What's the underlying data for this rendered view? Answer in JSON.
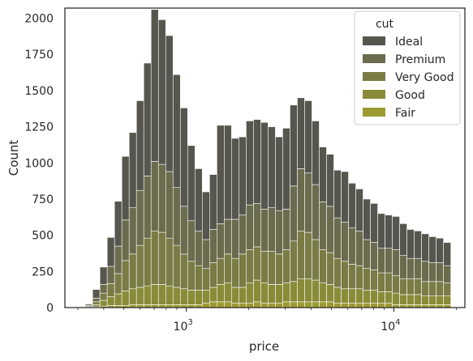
{
  "chart_data": {
    "type": "bar",
    "stacked": true,
    "xscale": "log",
    "xlabel": "price",
    "ylabel": "Count",
    "xlim": [
      260,
      22000
    ],
    "ylim": [
      0,
      2070
    ],
    "y_ticks": [
      0,
      250,
      500,
      750,
      1000,
      1250,
      1500,
      1750,
      2000
    ],
    "x_ticks": [
      {
        "value": 1000,
        "base": "10",
        "exp": "3"
      },
      {
        "value": 10000,
        "base": "10",
        "exp": "4"
      }
    ],
    "bin_range": [
      326,
      18823
    ],
    "bin_count": 50,
    "grid": false,
    "legend": {
      "title": "cut",
      "position": "top-right"
    },
    "series": [
      {
        "name": "Ideal",
        "color": "#56564f",
        "values": [
          10,
          60,
          120,
          200,
          310,
          440,
          520,
          620,
          780,
          1050,
          1000,
          940,
          780,
          680,
          520,
          430,
          330,
          380,
          680,
          650,
          560,
          540,
          580,
          580,
          600,
          560,
          510,
          560,
          560,
          490,
          500,
          440,
          380,
          360,
          330,
          350,
          310,
          290,
          280,
          270,
          240,
          230,
          230,
          220,
          200,
          190,
          190,
          180,
          170,
          160
        ]
      },
      {
        "name": "Premium",
        "color": "#6b6b4e",
        "values": [
          5,
          25,
          60,
          120,
          190,
          280,
          320,
          380,
          430,
          480,
          470,
          460,
          400,
          330,
          280,
          240,
          200,
          230,
          240,
          240,
          270,
          270,
          310,
          300,
          290,
          300,
          300,
          280,
          380,
          430,
          410,
          380,
          330,
          320,
          280,
          270,
          250,
          240,
          200,
          190,
          170,
          170,
          180,
          160,
          140,
          140,
          140,
          130,
          130,
          120
        ]
      },
      {
        "name": "Very Good",
        "color": "#7a7b45",
        "values": [
          5,
          20,
          50,
          90,
          140,
          210,
          240,
          290,
          330,
          370,
          360,
          330,
          290,
          240,
          200,
          170,
          150,
          170,
          180,
          200,
          200,
          230,
          230,
          230,
          220,
          230,
          210,
          230,
          280,
          330,
          320,
          280,
          230,
          220,
          200,
          190,
          170,
          160,
          150,
          140,
          130,
          130,
          120,
          110,
          110,
          110,
          100,
          100,
          100,
          90
        ]
      },
      {
        "name": "Good",
        "color": "#8a8b39",
        "values": [
          3,
          15,
          40,
          60,
          80,
          100,
          110,
          120,
          130,
          140,
          140,
          130,
          120,
          110,
          100,
          100,
          90,
          100,
          120,
          130,
          110,
          110,
          140,
          150,
          140,
          130,
          130,
          130,
          140,
          160,
          160,
          150,
          130,
          120,
          110,
          100,
          100,
          100,
          90,
          90,
          80,
          80,
          80,
          70,
          70,
          70,
          60,
          60,
          60,
          60
        ]
      },
      {
        "name": "Fair",
        "color": "#9c9b31",
        "values": [
          0,
          5,
          10,
          15,
          15,
          15,
          20,
          20,
          20,
          20,
          20,
          20,
          20,
          20,
          20,
          20,
          30,
          40,
          40,
          40,
          30,
          30,
          30,
          40,
          30,
          30,
          30,
          40,
          40,
          40,
          40,
          40,
          40,
          40,
          30,
          30,
          30,
          30,
          30,
          30,
          30,
          30,
          20,
          20,
          20,
          20,
          20,
          20,
          20,
          20
        ]
      }
    ]
  }
}
